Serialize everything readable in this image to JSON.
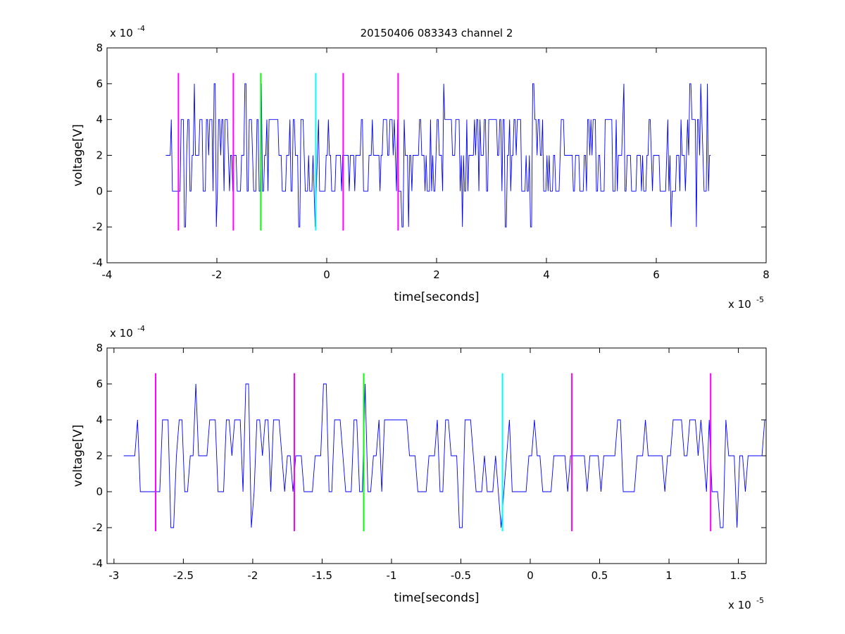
{
  "figure_title": "20150406 083343 channel 2",
  "colors": {
    "signal": "#0000ff",
    "magenta": "#ff00ff",
    "green": "#00ff00",
    "cyan": "#00ffff",
    "axes": "#000000"
  },
  "chart_data": [
    {
      "type": "line",
      "title": "20150406 083343 channel 2",
      "xlabel": "time[seconds]",
      "ylabel": "voltage[V]",
      "x_exponent_label": "x 10",
      "x_exponent": "-5",
      "y_exponent_label": "x 10",
      "y_exponent": "-4",
      "xlim": [
        -4,
        8
      ],
      "ylim": [
        -4,
        8
      ],
      "xticks": [
        -4,
        -2,
        0,
        2,
        4,
        6,
        8
      ],
      "xtick_labels": [
        "-4",
        "-2",
        "0",
        "2",
        "4",
        "6",
        "8"
      ],
      "yticks": [
        -4,
        -2,
        0,
        2,
        4,
        6,
        8
      ],
      "ytick_labels": [
        "-4",
        "-2",
        "0",
        "2",
        "4",
        "6",
        "8"
      ],
      "grid": false,
      "signal": {
        "x_start": -2.93,
        "x_end": 7.0,
        "levels": [
          -2,
          0,
          2,
          4,
          6
        ],
        "note": "noisy quantized voltage trace, mostly between 0 and 4"
      },
      "markers": [
        {
          "x": -2.7,
          "color": "magenta",
          "ymin": -2.2,
          "ymax": 6.6
        },
        {
          "x": -1.7,
          "color": "magenta",
          "ymin": -2.2,
          "ymax": 6.6
        },
        {
          "x": -1.2,
          "color": "green",
          "ymin": -2.2,
          "ymax": 6.6
        },
        {
          "x": -0.2,
          "color": "cyan",
          "ymin": -2.2,
          "ymax": 6.6
        },
        {
          "x": 0.3,
          "color": "magenta",
          "ymin": -2.2,
          "ymax": 6.6
        },
        {
          "x": 1.3,
          "color": "magenta",
          "ymin": -2.2,
          "ymax": 6.6
        }
      ]
    },
    {
      "type": "line",
      "title": "",
      "xlabel": "time[seconds]",
      "ylabel": "voltage[V]",
      "x_exponent_label": "x 10",
      "x_exponent": "-5",
      "y_exponent_label": "x 10",
      "y_exponent": "-4",
      "xlim": [
        -3.05,
        1.7
      ],
      "ylim": [
        -4,
        8
      ],
      "xticks": [
        -3,
        -2.5,
        -2,
        -1.5,
        -1,
        -0.5,
        0,
        0.5,
        1,
        1.5
      ],
      "xtick_labels": [
        "-3",
        "-2.5",
        "-2",
        "-1.5",
        "-1",
        "-0.5",
        "0",
        "0.5",
        "1",
        "1.5"
      ],
      "yticks": [
        -4,
        -2,
        0,
        2,
        4,
        6,
        8
      ],
      "ytick_labels": [
        "-4",
        "-2",
        "0",
        "2",
        "4",
        "6",
        "8"
      ],
      "grid": false,
      "signal": {
        "x_start": -2.93,
        "x_end": 1.7,
        "levels": [
          -2,
          0,
          2,
          4,
          6
        ],
        "note": "zoomed view of the same noisy quantized voltage trace"
      },
      "markers": [
        {
          "x": -2.7,
          "color": "magenta",
          "ymin": -2.2,
          "ymax": 6.6
        },
        {
          "x": -1.7,
          "color": "magenta",
          "ymin": -2.2,
          "ymax": 6.6
        },
        {
          "x": -1.2,
          "color": "green",
          "ymin": -2.2,
          "ymax": 6.6
        },
        {
          "x": -0.2,
          "color": "cyan",
          "ymin": -2.2,
          "ymax": 6.6
        },
        {
          "x": 0.3,
          "color": "magenta",
          "ymin": -2.2,
          "ymax": 6.6
        },
        {
          "x": 1.3,
          "color": "magenta",
          "ymin": -2.2,
          "ymax": 6.6
        }
      ]
    }
  ]
}
